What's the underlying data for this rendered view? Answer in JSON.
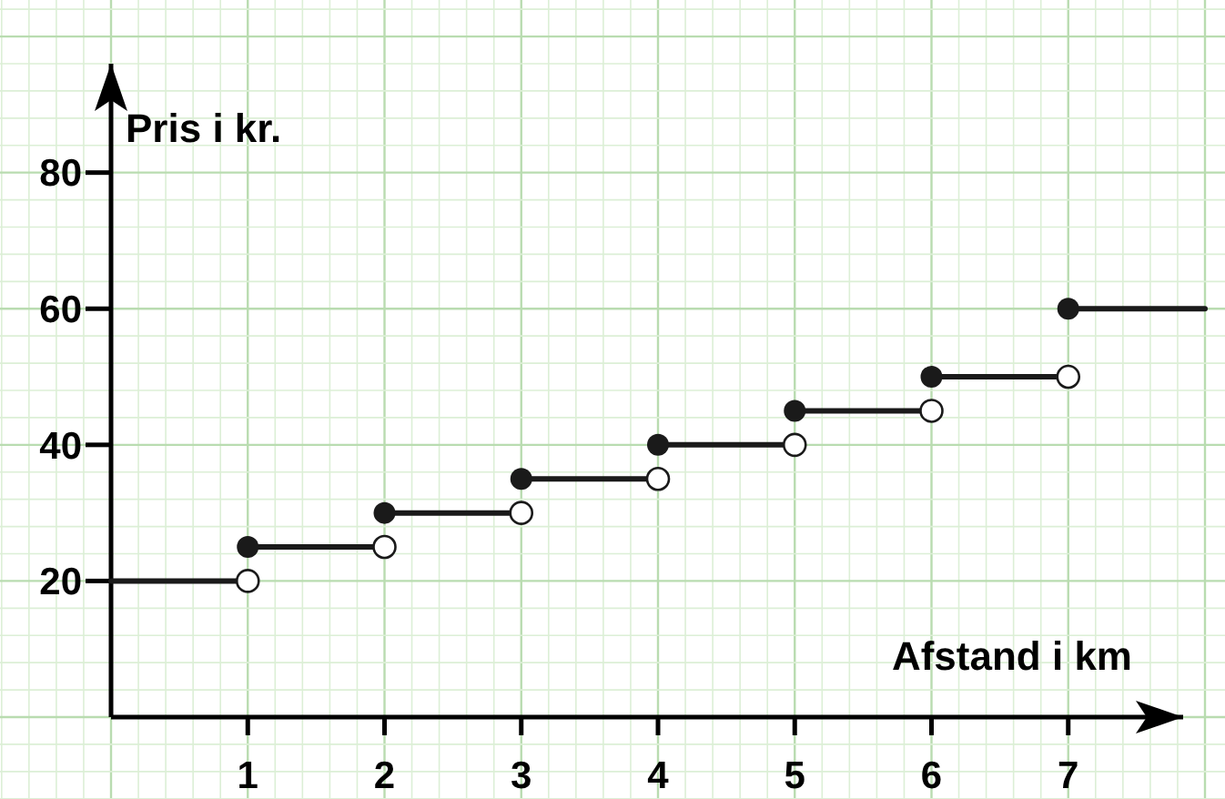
{
  "chart_data": {
    "type": "line",
    "xlabel": "Afstand i km",
    "ylabel": "Pris i kr.",
    "series": [
      {
        "color": "#1a1a1a",
        "x": [
          0,
          1
        ],
        "values": [
          20,
          20
        ]
      },
      {
        "color": "#1a1a1a",
        "x": [
          1,
          2
        ],
        "values": [
          25,
          25
        ]
      },
      {
        "color": "#1a1a1a",
        "x": [
          2,
          3
        ],
        "values": [
          30,
          30
        ]
      },
      {
        "color": "#1a1a1a",
        "x": [
          3,
          4
        ],
        "values": [
          35,
          35
        ]
      },
      {
        "color": "#1a1a1a",
        "x": [
          4,
          5
        ],
        "values": [
          40,
          40
        ]
      },
      {
        "color": "#1a1a1a",
        "x": [
          5,
          6
        ],
        "values": [
          45,
          45
        ]
      },
      {
        "color": "#1a1a1a",
        "x": [
          6,
          7
        ],
        "values": [
          50,
          50
        ]
      },
      {
        "color": "#1a1a1a",
        "x": [
          7,
          8
        ],
        "values": [
          60,
          60
        ]
      }
    ],
    "xlim": [
      0,
      8
    ],
    "xticks": [
      1,
      2,
      3,
      4,
      5,
      6,
      7
    ],
    "ylim": [
      0,
      96
    ],
    "yticks": [
      20,
      40,
      60,
      80
    ],
    "grid": true,
    "marker": "circle"
  }
}
